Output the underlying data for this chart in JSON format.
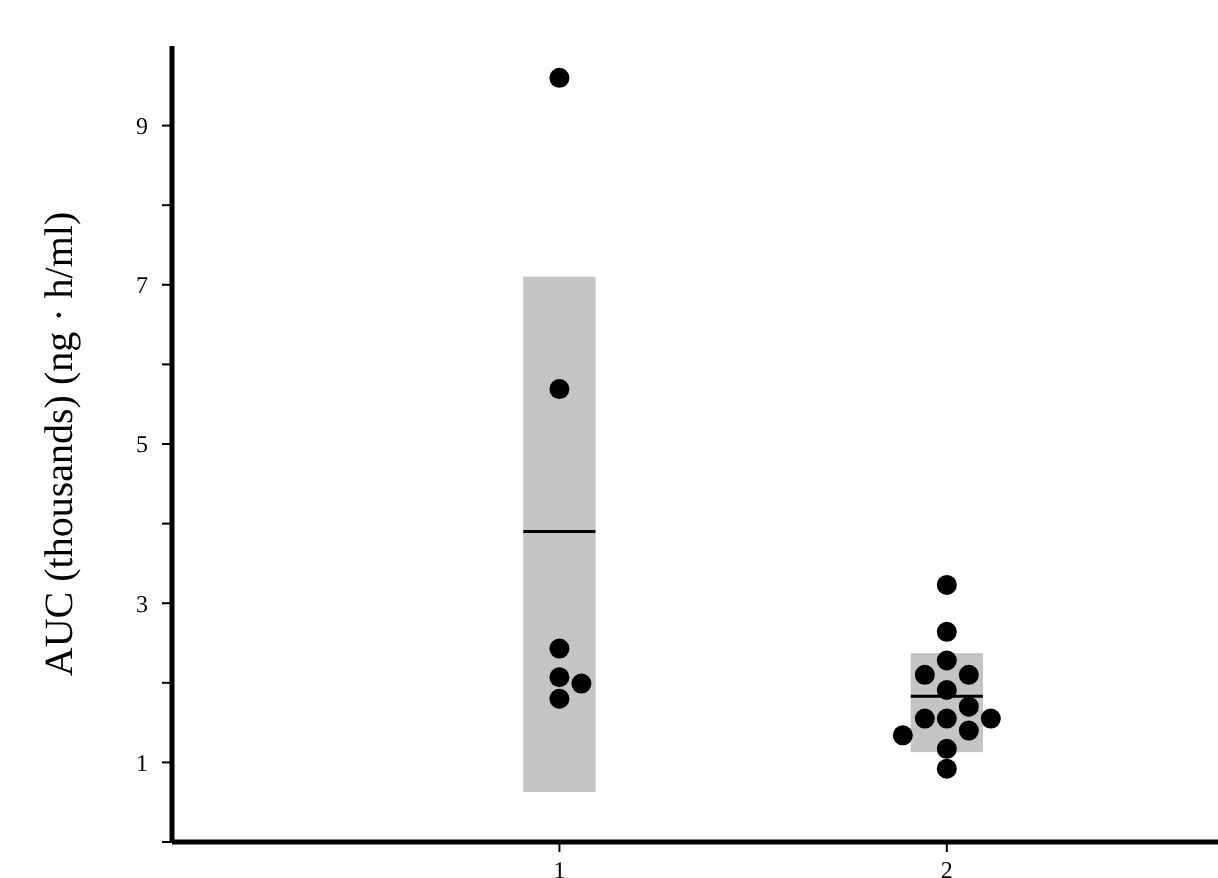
{
  "chart_data": {
    "type": "box",
    "ylabel": "AUC (thousands) (ng · h/ml)",
    "categories": [
      "1",
      "2"
    ],
    "ylim": [
      0,
      10
    ],
    "yticks": [
      {
        "value": 0,
        "label": null
      },
      1,
      {
        "value": 2,
        "label": null
      },
      3,
      {
        "value": 4,
        "label": null
      },
      5,
      {
        "value": 6,
        "label": null
      },
      7,
      {
        "value": 8,
        "label": null
      },
      9
    ],
    "grid": false,
    "series": [
      {
        "color": "#c4c4c4",
        "boxes": [
          {
            "low": 0.63,
            "q1": 0.63,
            "median": 3.9,
            "q3": 7.1,
            "high": 7.1
          },
          {
            "low": 1.13,
            "q1": 1.13,
            "median": 1.83,
            "q3": 2.37,
            "high": 2.37
          }
        ]
      },
      {
        "type": "scatter",
        "color": "#000000",
        "marker": "circle",
        "x": [
          "1",
          "1",
          "1",
          "1",
          "1",
          "1",
          "2",
          "2",
          "2",
          "2",
          "2",
          "2",
          "2",
          "2",
          "2",
          "2",
          "2",
          "2",
          "2",
          "2"
        ],
        "values": [
          9.6,
          5.69,
          2.43,
          2.07,
          1.99,
          1.8,
          3.23,
          2.64,
          2.28,
          2.1,
          2.1,
          1.91,
          1.7,
          1.55,
          1.55,
          1.55,
          1.4,
          1.34,
          1.17,
          0.92
        ]
      }
    ]
  }
}
